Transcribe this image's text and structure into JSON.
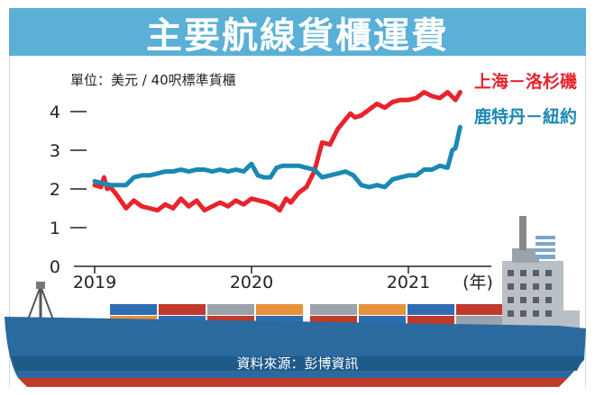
{
  "title": "主要航線貨櫃運費",
  "source": "資料來源：彭博資訊",
  "colors": {
    "title_bg": "#5ab0d6",
    "shanghai_la": "#e8232c",
    "kaohsiung_ny": "#1a88b3",
    "axis": "#222222",
    "ship_hull": "#2a6a9f"
  },
  "chart_data": {
    "type": "line",
    "unit_label": "單位：美元 / 40呎標準貨櫃",
    "xlabel": "(年)",
    "x_ticks": [
      "2019",
      "2020",
      "2021"
    ],
    "y_ticks": [
      "0",
      "1",
      "2",
      "3",
      "4"
    ],
    "ylim": [
      0,
      4.6
    ],
    "xlim": [
      2019.0,
      2021.5
    ],
    "grid": false,
    "legend_placement": "top-right",
    "series": [
      {
        "name": "上海－洛杉磯",
        "color": "#e8232c",
        "x": [
          2019.0,
          2019.04,
          2019.06,
          2019.08,
          2019.1,
          2019.14,
          2019.2,
          2019.25,
          2019.3,
          2019.35,
          2019.4,
          2019.45,
          2019.5,
          2019.55,
          2019.6,
          2019.65,
          2019.7,
          2019.75,
          2019.8,
          2019.85,
          2019.9,
          2019.95,
          2020.0,
          2020.05,
          2020.1,
          2020.15,
          2020.18,
          2020.22,
          2020.25,
          2020.3,
          2020.35,
          2020.4,
          2020.45,
          2020.5,
          2020.55,
          2020.6,
          2020.63,
          2020.66,
          2020.7,
          2020.75,
          2020.8,
          2020.85,
          2020.9,
          2020.95,
          2021.0,
          2021.05,
          2021.1,
          2021.15,
          2021.2,
          2021.25,
          2021.3,
          2021.33
        ],
        "values": [
          2.1,
          2.05,
          2.3,
          2.0,
          2.05,
          1.85,
          1.5,
          1.7,
          1.55,
          1.5,
          1.45,
          1.6,
          1.5,
          1.75,
          1.55,
          1.7,
          1.45,
          1.55,
          1.65,
          1.55,
          1.7,
          1.6,
          1.75,
          1.7,
          1.65,
          1.55,
          1.45,
          1.75,
          1.65,
          1.9,
          2.05,
          2.45,
          3.2,
          3.15,
          3.55,
          3.8,
          3.95,
          3.85,
          3.9,
          4.05,
          4.2,
          4.1,
          4.25,
          4.3,
          4.3,
          4.35,
          4.5,
          4.4,
          4.35,
          4.5,
          4.3,
          4.5
        ]
      },
      {
        "name": "鹿特丹－紐約",
        "color": "#1a88b3",
        "x": [
          2019.0,
          2019.05,
          2019.1,
          2019.15,
          2019.2,
          2019.25,
          2019.3,
          2019.35,
          2019.4,
          2019.45,
          2019.5,
          2019.55,
          2019.6,
          2019.65,
          2019.7,
          2019.75,
          2019.8,
          2019.85,
          2019.9,
          2019.95,
          2020.0,
          2020.04,
          2020.08,
          2020.12,
          2020.16,
          2020.2,
          2020.25,
          2020.3,
          2020.35,
          2020.4,
          2020.45,
          2020.5,
          2020.55,
          2020.6,
          2020.65,
          2020.7,
          2020.75,
          2020.8,
          2020.85,
          2020.9,
          2020.95,
          2021.0,
          2021.05,
          2021.1,
          2021.15,
          2021.2,
          2021.25,
          2021.28,
          2021.3,
          2021.33
        ],
        "values": [
          2.2,
          2.15,
          2.1,
          2.1,
          2.1,
          2.3,
          2.35,
          2.35,
          2.4,
          2.45,
          2.45,
          2.5,
          2.45,
          2.5,
          2.5,
          2.45,
          2.5,
          2.45,
          2.5,
          2.45,
          2.65,
          2.35,
          2.3,
          2.3,
          2.55,
          2.6,
          2.6,
          2.6,
          2.55,
          2.5,
          2.3,
          2.35,
          2.4,
          2.45,
          2.35,
          2.1,
          2.05,
          2.1,
          2.05,
          2.25,
          2.3,
          2.35,
          2.35,
          2.5,
          2.5,
          2.6,
          2.55,
          3.0,
          3.05,
          3.6
        ]
      }
    ]
  }
}
